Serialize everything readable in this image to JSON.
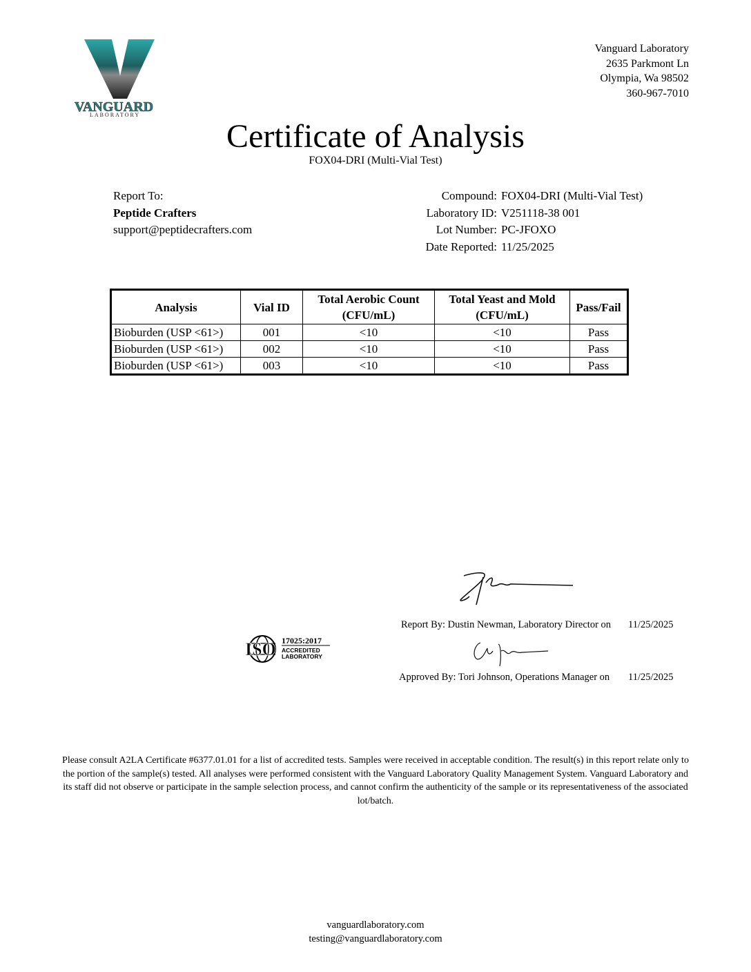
{
  "logo": {
    "brand": "VANGUARD",
    "sub": "LABORATORY",
    "colors": {
      "teal": "#2aa8a8",
      "dark": "#1a1a1a"
    }
  },
  "address": [
    "Vanguard Laboratory",
    "2635 Parkmont Ln",
    "Olympia, Wa 98502",
    "360-967-7010"
  ],
  "title": "Certificate of Analysis",
  "subtitle": "FOX04-DRI (Multi-Vial Test)",
  "report_to": {
    "label": "Report To:",
    "company": "Peptide Crafters",
    "email": "support@peptidecrafters.com"
  },
  "meta": [
    {
      "key": "Compound:",
      "value": "FOX04-DRI (Multi-Vial Test)"
    },
    {
      "key": "Laboratory ID:",
      "value": "V251118-38 001"
    },
    {
      "key": "Lot Number:",
      "value": "PC-JFOXO"
    },
    {
      "key": "Date Reported:",
      "value": "11/25/2025"
    }
  ],
  "table": {
    "headers": [
      "Analysis",
      "Vial ID",
      "Total Aerobic Count (CFU/mL)",
      "Total Yeast and Mold (CFU/mL)",
      "Pass/Fail"
    ],
    "rows": [
      [
        "Bioburden (USP <61>)",
        "001",
        "<10",
        "<10",
        "Pass"
      ],
      [
        "Bioburden (USP <61>)",
        "002",
        "<10",
        "<10",
        "Pass"
      ],
      [
        "Bioburden (USP <61>)",
        "003",
        "<10",
        "<10",
        "Pass"
      ]
    ]
  },
  "iso": {
    "mark": "ISO",
    "line1": "17025:2017",
    "line2": "ACCREDITED",
    "line3": "LABORATORY"
  },
  "signatures": {
    "report_by": "Report By: Dustin Newman, Laboratory Director on",
    "report_date": "11/25/2025",
    "approved_by": "Approved By: Tori Johnson, Operations Manager on",
    "approved_date": "11/25/2025"
  },
  "disclaimer": "Please consult A2LA Certificate #6377.01.01 for a list of accredited tests. Samples were received in acceptable condition. The result(s) in this report relate only to the portion of the sample(s) tested. All analyses were performed consistent with the Vanguard Laboratory Quality Management System. Vanguard Laboratory and its staff did not observe or participate in the sample selection process, and cannot confirm the authenticity of the sample or its representativeness of the associated lot/batch.",
  "footer": {
    "website": "vanguardlaboratory.com",
    "email": "testing@vanguardlaboratory.com"
  }
}
